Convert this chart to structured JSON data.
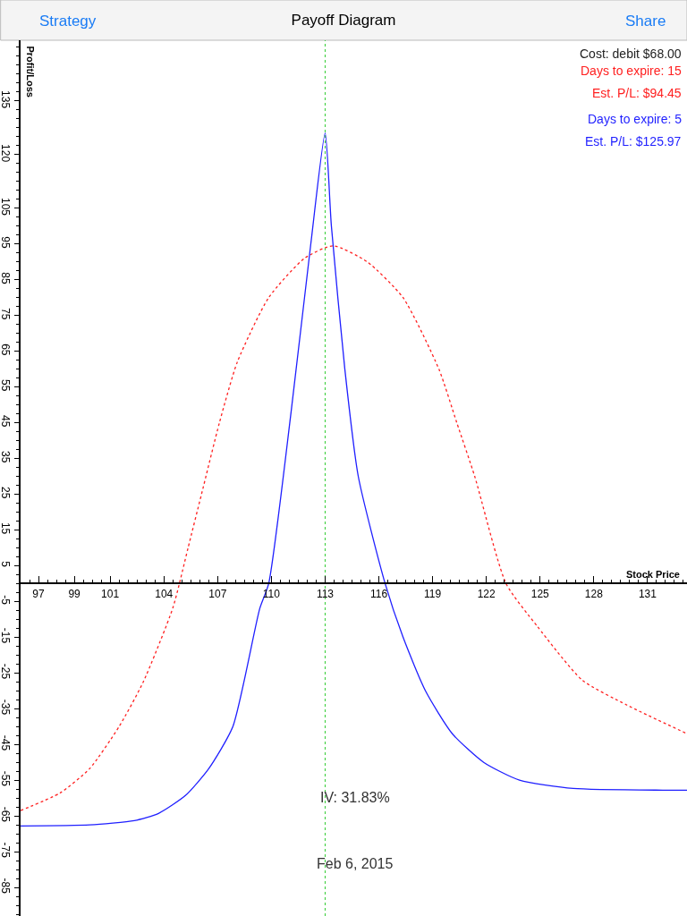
{
  "chart_data": {
    "type": "line",
    "title": "Payoff Diagram",
    "xlabel": "Stock Price",
    "ylabel": "Profit/Loss",
    "xlim": [
      96,
      133.2
    ],
    "ylim": [
      -93,
      152
    ],
    "xticks": [
      97,
      99,
      101,
      104,
      107,
      110,
      113,
      116,
      119,
      122,
      125,
      128,
      131
    ],
    "yticks": [
      135,
      120,
      105,
      95,
      85,
      75,
      65,
      55,
      45,
      35,
      25,
      15,
      5,
      -5,
      -15,
      -25,
      -35,
      -45,
      -55,
      -65,
      -75,
      -85
    ],
    "grid": false,
    "series": [
      {
        "name": "Days to expire: 15",
        "color": "#ff2020",
        "line_style": "dotted",
        "x": [
          96,
          98.2,
          99.85,
          101.5,
          102.85,
          104.5,
          105.35,
          106.1,
          107.1,
          108.1,
          109.85,
          111.85,
          113.45,
          115.35,
          117.35,
          119.35,
          120.35,
          121.35,
          123.1,
          124.85,
          127.35,
          129.85,
          133.2
        ],
        "values": [
          -63.5,
          -58.6,
          -51.8,
          -40,
          -27.5,
          -6.8,
          10,
          25,
          45,
          62,
          80,
          91,
          94.5,
          90,
          80,
          60,
          45,
          30,
          0,
          -12,
          -27,
          -34,
          -42
        ]
      },
      {
        "name": "Days to expire: 5",
        "color": "#1f1fff",
        "line_style": "solid",
        "x": [
          96,
          99.85,
          102.35,
          103.7,
          105.2,
          106.5,
          107.85,
          109.35,
          109.85,
          111.1,
          112.2,
          113,
          113.35,
          114.1,
          114.85,
          116.35,
          117.35,
          118.6,
          120.1,
          121.85,
          123.85,
          126.85,
          131.85,
          133.2
        ],
        "values": [
          -67.8,
          -67.5,
          -66.3,
          -64.3,
          -59.3,
          -51.8,
          -40,
          -7,
          0,
          48,
          95,
          126,
          100,
          60,
          30,
          0,
          -15,
          -30,
          -42,
          -50,
          -55,
          -57.3,
          -57.8,
          -57.8
        ]
      }
    ],
    "ref_lines": [
      {
        "axis": "x",
        "value": 113,
        "color": "#33cc33",
        "line_style": "dotted"
      }
    ],
    "annotations": [
      "Strategy",
      "Share",
      "Cost: debit $68.00",
      "Est. P/L: $94.45",
      "Est. P/L: $125.97",
      "IV: 31.83%",
      "Feb 6, 2015"
    ]
  }
}
